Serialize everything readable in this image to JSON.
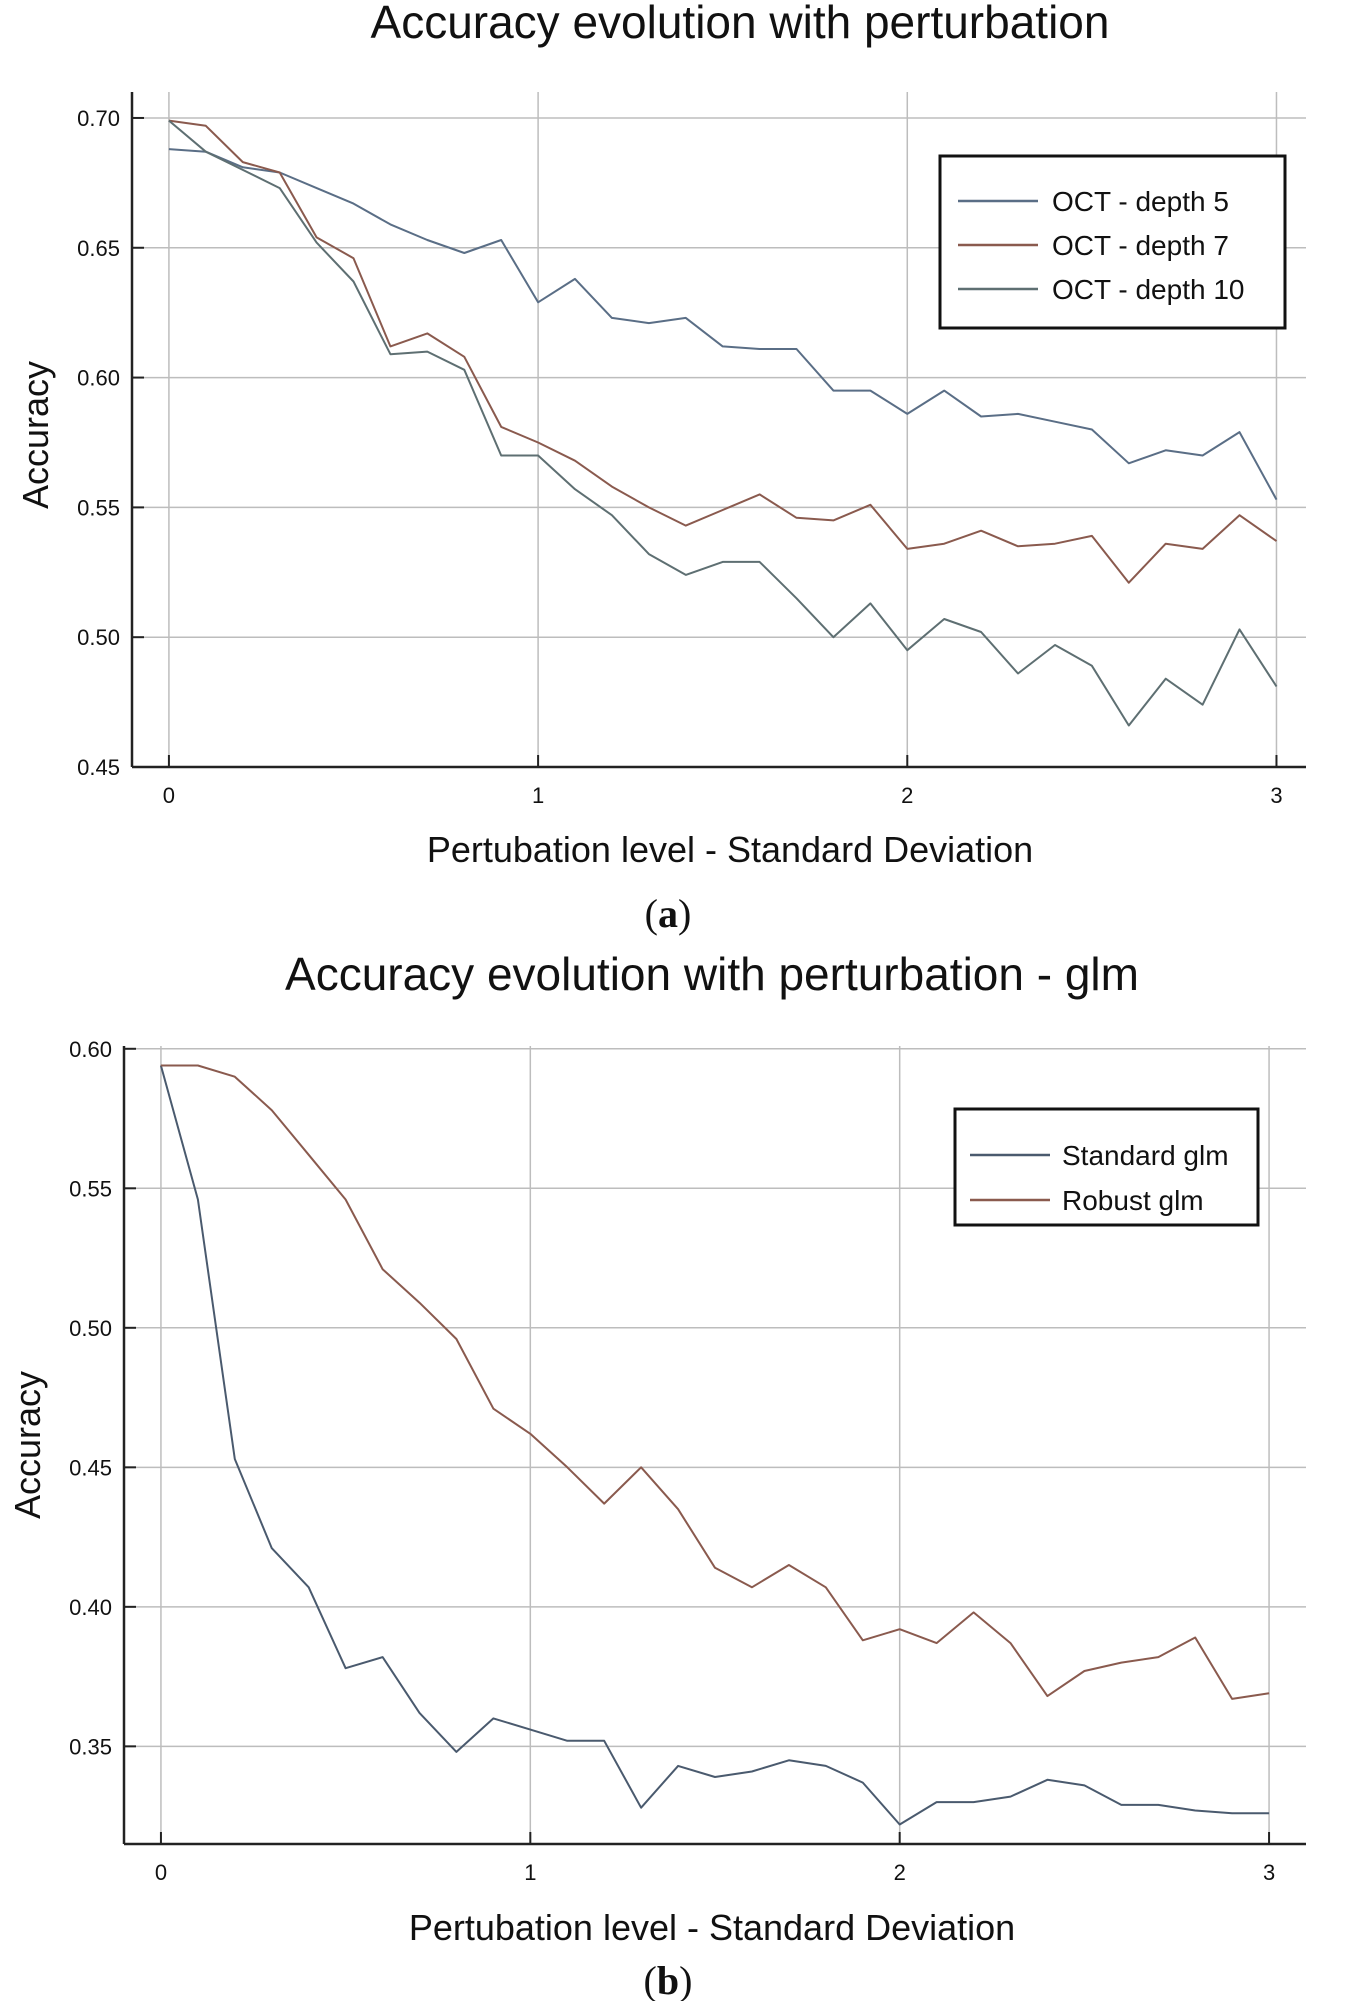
{
  "chart_data": [
    {
      "type": "line",
      "title": "Accuracy evolution with perturbation",
      "xlabel": "Pertubation level - Standard Deviation",
      "ylabel": "Accuracy",
      "caption": "(a)",
      "caption_letter": "a",
      "xlim": [
        -0.1,
        3.08
      ],
      "ylim": [
        0.45,
        0.71
      ],
      "xticks": [
        0,
        1,
        2,
        3
      ],
      "xtick_labels": [
        "0",
        "1",
        "2",
        "3"
      ],
      "yticks": [
        0.45,
        0.5,
        0.55,
        0.6,
        0.65,
        0.7
      ],
      "ytick_labels": [
        "0.45",
        "0.50",
        "0.55",
        "0.60",
        "0.65",
        "0.70"
      ],
      "grid": true,
      "legend_position": "top-right",
      "x": [
        0,
        0.1,
        0.2,
        0.3,
        0.4,
        0.5,
        0.6,
        0.7,
        0.8,
        0.9,
        1.0,
        1.1,
        1.2,
        1.3,
        1.4,
        1.5,
        1.6,
        1.7,
        1.8,
        1.9,
        2.0,
        2.1,
        2.2,
        2.3,
        2.4,
        2.5,
        2.6,
        2.7,
        2.8,
        2.9,
        3.0
      ],
      "series": [
        {
          "name": "OCT - depth 5",
          "color": "#5a6e86",
          "values": [
            0.688,
            0.687,
            0.681,
            0.679,
            0.673,
            0.667,
            0.659,
            0.653,
            0.648,
            0.653,
            0.629,
            0.638,
            0.623,
            0.621,
            0.623,
            0.612,
            0.611,
            0.611,
            0.595,
            0.595,
            0.586,
            0.595,
            0.585,
            0.586,
            0.583,
            0.58,
            0.567,
            0.572,
            0.57,
            0.579,
            0.553
          ]
        },
        {
          "name": "OCT - depth 7",
          "color": "#8a5a4e",
          "values": [
            0.699,
            0.697,
            0.683,
            0.679,
            0.654,
            0.646,
            0.612,
            0.617,
            0.608,
            0.581,
            0.575,
            0.568,
            0.558,
            0.55,
            0.543,
            0.549,
            0.555,
            0.546,
            0.545,
            0.551,
            0.534,
            0.536,
            0.541,
            0.535,
            0.536,
            0.539,
            0.521,
            0.536,
            0.534,
            0.547,
            0.537
          ]
        },
        {
          "name": "OCT - depth 10",
          "color": "#5e6f72",
          "values": [
            0.699,
            0.687,
            0.68,
            0.673,
            0.652,
            0.637,
            0.609,
            0.61,
            0.603,
            0.57,
            0.57,
            0.557,
            0.547,
            0.532,
            0.524,
            0.529,
            0.529,
            0.515,
            0.5,
            0.513,
            0.495,
            0.507,
            0.502,
            0.486,
            0.497,
            0.489,
            0.466,
            0.484,
            0.474,
            0.503,
            0.481
          ]
        }
      ]
    },
    {
      "type": "line",
      "title": "Accuracy evolution with perturbation - glm",
      "xlabel": "Pertubation level - Standard Deviation",
      "ylabel": "Accuracy",
      "caption": "(b)",
      "caption_letter": "b",
      "xlim": [
        -0.1,
        3.1
      ],
      "ylim": [
        0.315,
        0.601
      ],
      "xticks": [
        0,
        1,
        2,
        3
      ],
      "xtick_labels": [
        "0",
        "1",
        "2",
        "3"
      ],
      "yticks": [
        0.35,
        0.4,
        0.45,
        0.5,
        0.55,
        0.6
      ],
      "ytick_labels": [
        "0.35",
        "0.40",
        "0.45",
        "0.50",
        "0.55",
        "0.60"
      ],
      "grid": true,
      "legend_position": "top-right",
      "x": [
        0,
        0.1,
        0.2,
        0.3,
        0.4,
        0.5,
        0.6,
        0.7,
        0.8,
        0.9,
        1.0,
        1.1,
        1.2,
        1.3,
        1.4,
        1.5,
        1.6,
        1.7,
        1.8,
        1.9,
        2.0,
        2.1,
        2.2,
        2.3,
        2.4,
        2.5,
        2.6,
        2.7,
        2.8,
        2.9,
        3.0
      ],
      "series": [
        {
          "name": "Standard glm",
          "color": "#4a5a6e",
          "values": [
            0.594,
            0.546,
            0.453,
            0.421,
            0.407,
            0.378,
            0.382,
            0.362,
            0.348,
            0.36,
            0.356,
            0.352,
            0.352,
            0.328,
            0.343,
            0.339,
            0.341,
            0.345,
            0.343,
            0.337,
            0.322,
            0.33,
            0.33,
            0.332,
            0.338,
            0.336,
            0.329,
            0.329,
            0.327,
            0.326,
            0.326
          ]
        },
        {
          "name": "Robust glm",
          "color": "#8a5a4e",
          "values": [
            0.594,
            0.594,
            0.59,
            0.578,
            0.562,
            0.546,
            0.521,
            0.509,
            0.496,
            0.471,
            0.462,
            0.45,
            0.437,
            0.45,
            0.435,
            0.414,
            0.407,
            0.415,
            0.407,
            0.388,
            0.392,
            0.387,
            0.398,
            0.387,
            0.368,
            0.377,
            0.38,
            0.382,
            0.389,
            0.367,
            0.369
          ]
        }
      ]
    }
  ]
}
